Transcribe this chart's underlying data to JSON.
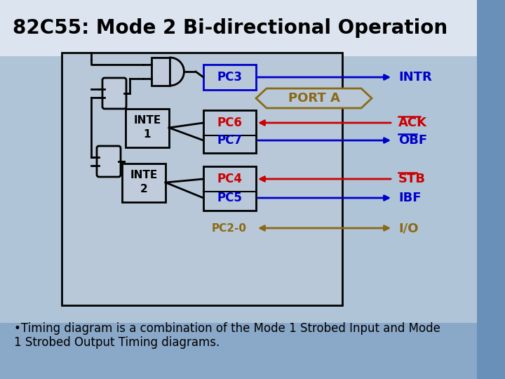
{
  "title": "82C55: Mode 2 Bi-directional Operation",
  "title_fontsize": 20,
  "blue": "#0000cc",
  "red": "#cc0000",
  "gold": "#8b6914",
  "black": "#000000",
  "bg_slide": "#a8bcd8",
  "bg_title": "#dce4ee",
  "bg_diagram": "#b8cad8",
  "bullet_line1": "•Timing diagram is a combination of the Mode 1 Strobed Input and Mode",
  "bullet_line2": "1 Strobed Output Timing diagrams.",
  "bullet_fontsize": 12
}
